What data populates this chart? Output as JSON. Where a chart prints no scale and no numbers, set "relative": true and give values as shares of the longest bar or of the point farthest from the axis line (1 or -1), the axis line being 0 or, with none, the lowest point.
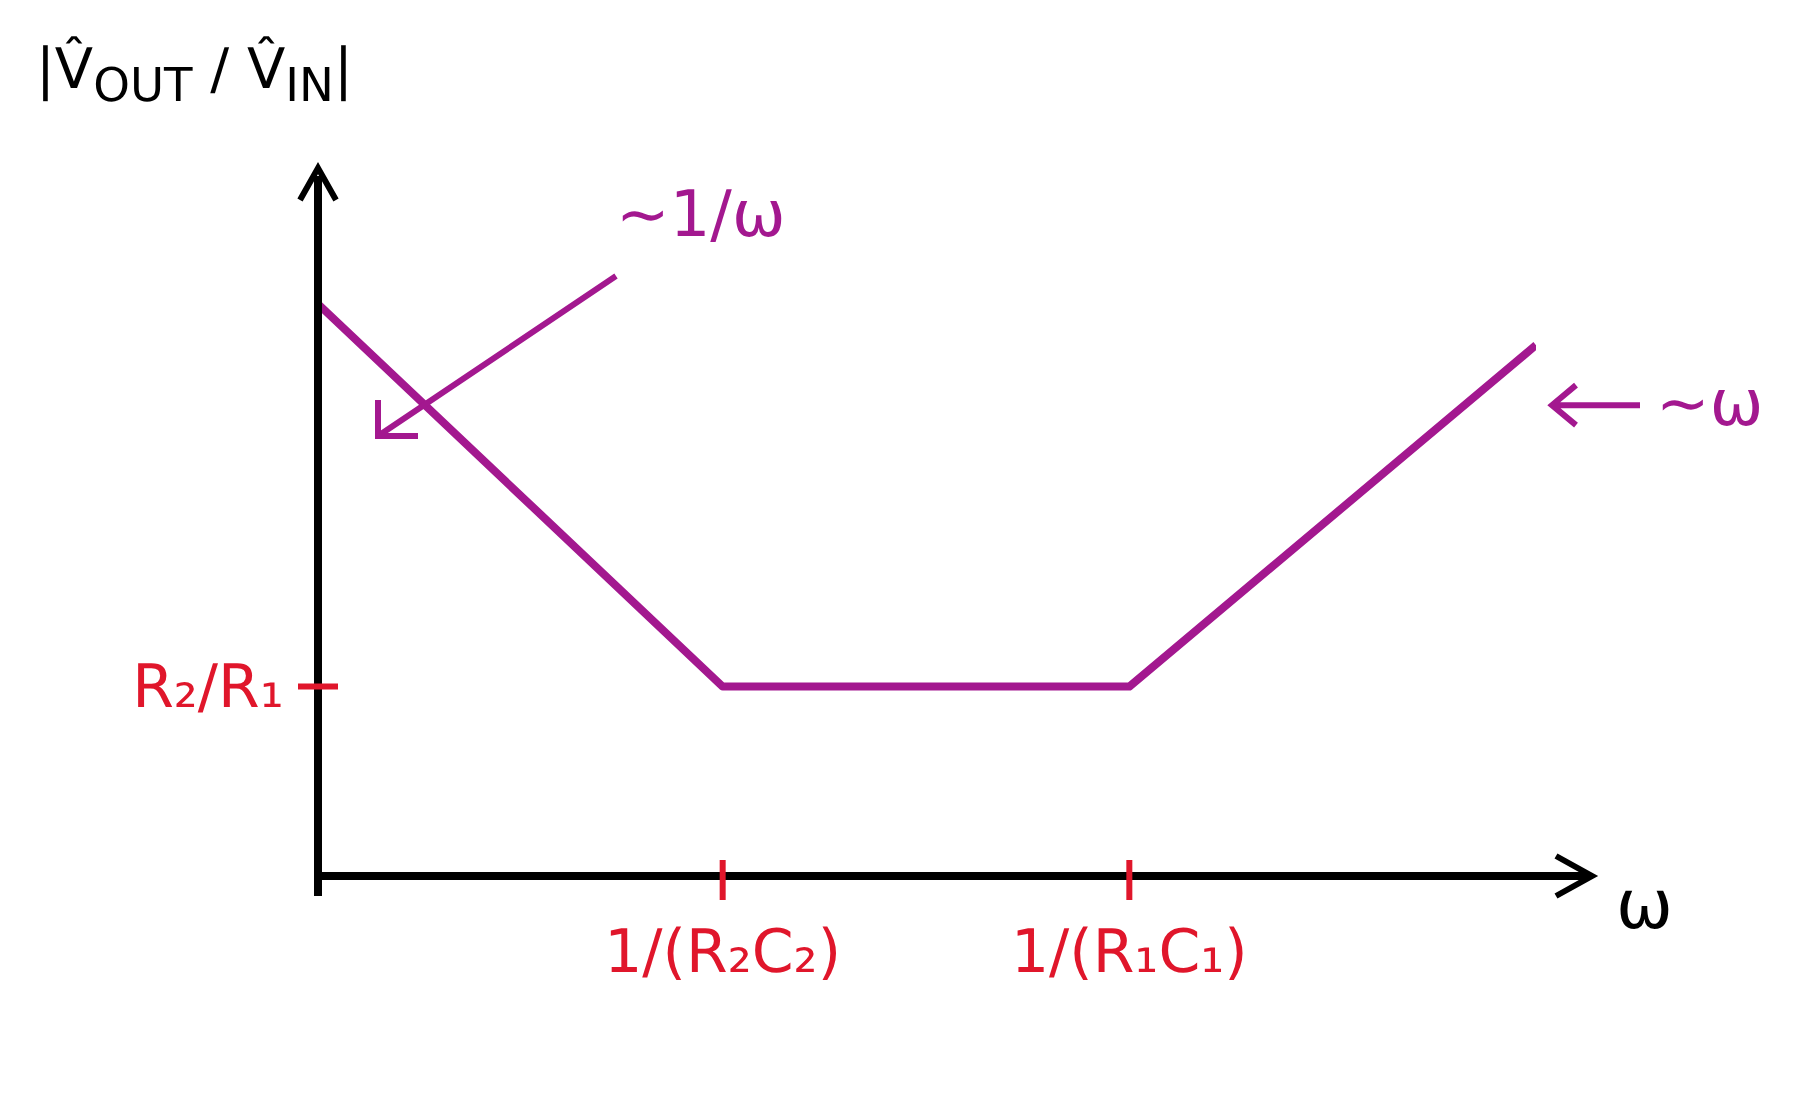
{
  "chart_data": {
    "type": "line",
    "relative": true,
    "xlabel": "ω",
    "ylabel": "|V̂$_{OUT}$ / V̂$_{IN}$|",
    "categories": [
      null,
      "1/(R₂C₂)",
      "1/(R₁C₁)",
      null
    ],
    "series": [
      {
        "color": "#a3188f",
        "values": [
          1,
          0.33,
          0.33,
          0.925
        ]
      }
    ],
    "annotations": [
      "R₂/R₁",
      "~1/ω",
      "~ω"
    ],
    "marker": "none",
    "line_style": "solid"
  }
}
